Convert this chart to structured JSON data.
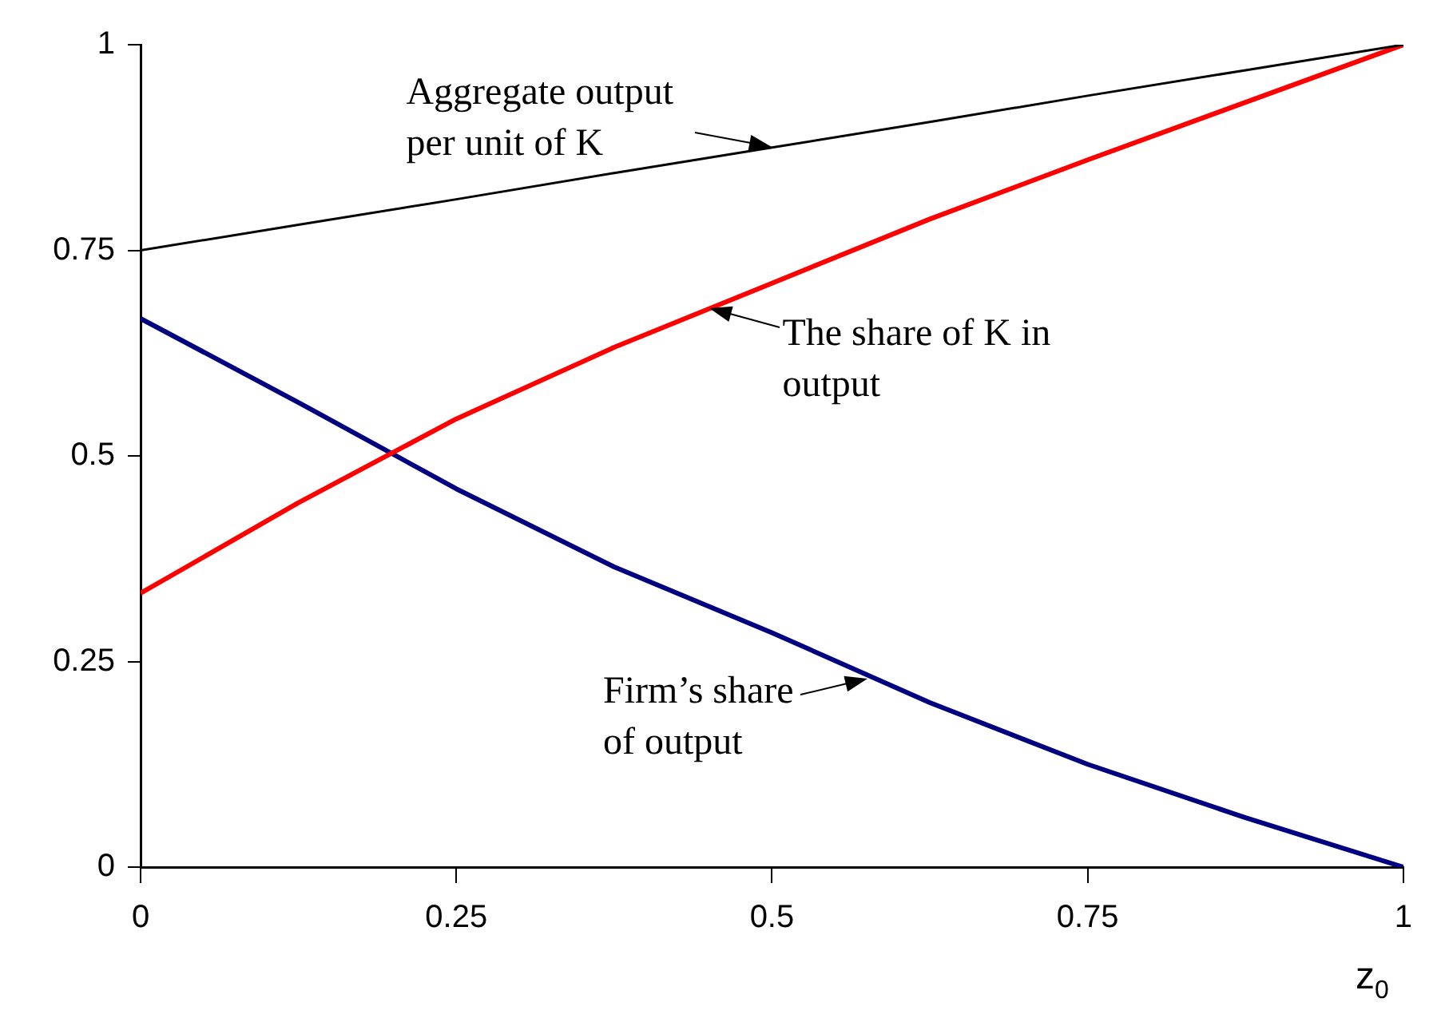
{
  "chart_data": {
    "type": "line",
    "xlabel": "z$_{0}$",
    "x": [
      0,
      0.125,
      0.25,
      0.375,
      0.5,
      0.625,
      0.75,
      0.875,
      1
    ],
    "series": [
      {
        "color": "#000000",
        "values": [
          0.75,
          0.781,
          0.812,
          0.844,
          0.875,
          0.906,
          0.938,
          0.969,
          1
        ]
      },
      {
        "color": "#ff0000",
        "values": [
          0.333,
          0.443,
          0.545,
          0.632,
          0.71,
          0.788,
          0.86,
          0.93,
          1
        ]
      },
      {
        "color": "#000080",
        "values": [
          0.667,
          0.565,
          0.46,
          0.365,
          0.285,
          0.2,
          0.125,
          0.06,
          0
        ]
      }
    ],
    "xlim": [
      0,
      1
    ],
    "xticks": [
      0,
      0.25,
      0.5,
      0.75,
      1
    ],
    "ylim": [
      0,
      1
    ],
    "yticks": [
      0,
      0.25,
      0.5,
      0.75,
      1
    ],
    "grid": false,
    "legend": false,
    "marker": "none",
    "line_style": "solid",
    "annotations": [
      {
        "text": "Aggregate output per unit of K",
        "x": 0.5,
        "y": 0.875
      },
      {
        "text": "The share of K in output",
        "x": 0.45,
        "y": 0.679
      },
      {
        "text": "Firm’s share of output",
        "x": 0.575,
        "y": 0.23
      }
    ]
  }
}
